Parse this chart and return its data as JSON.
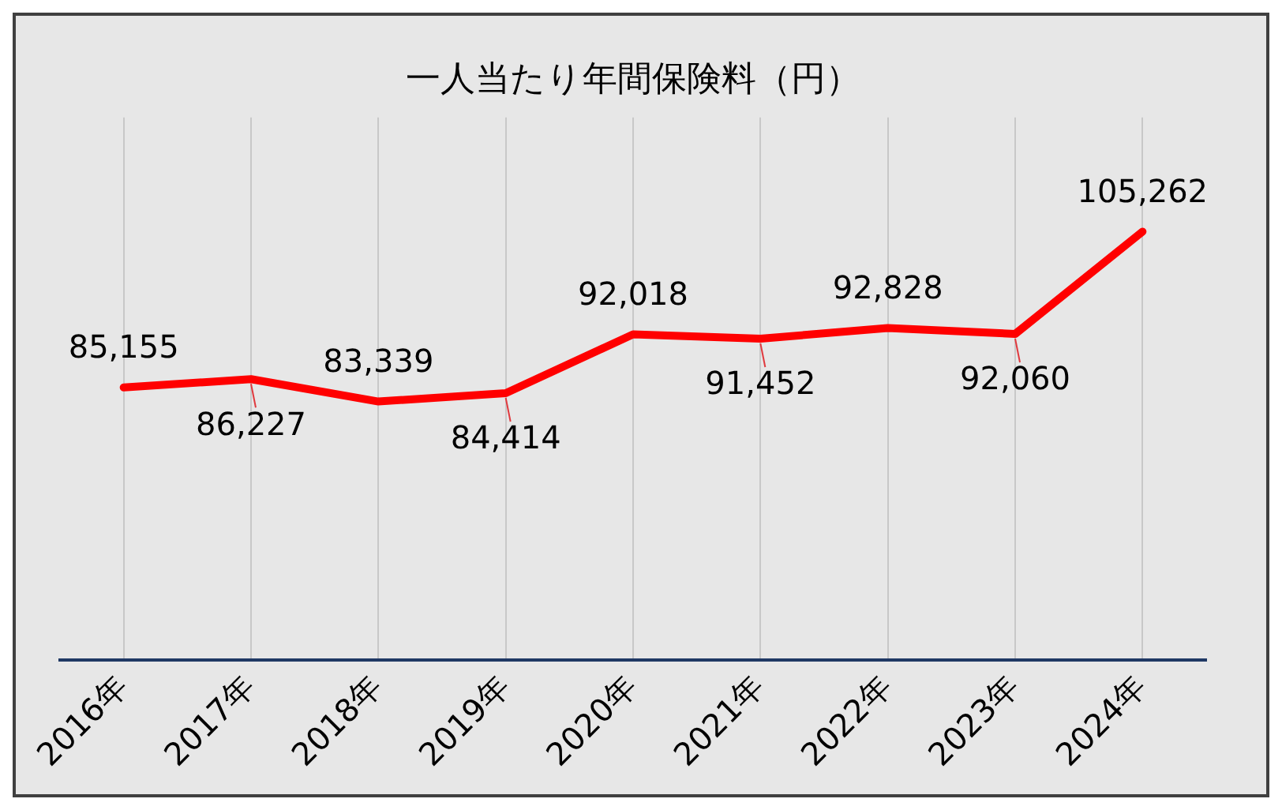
{
  "chart_data": {
    "type": "line",
    "title": "一人当たり年間保険料（円）",
    "categories": [
      "2016年",
      "2017年",
      "2018年",
      "2019年",
      "2020年",
      "2021年",
      "2022年",
      "2023年",
      "2024年"
    ],
    "series": [
      {
        "color": "#ff0000",
        "values": [
          85155,
          86227,
          83339,
          84414,
          92018,
          91452,
          92828,
          92060,
          105262
        ],
        "value_labels": [
          "85,155",
          "86,227",
          "83,339",
          "84,414",
          "92,018",
          "91,452",
          "92,828",
          "92,060",
          "105,262"
        ]
      }
    ],
    "tick_labels": "x",
    "grid": "x",
    "legend": false,
    "marker": "none",
    "line_style": "solid"
  }
}
